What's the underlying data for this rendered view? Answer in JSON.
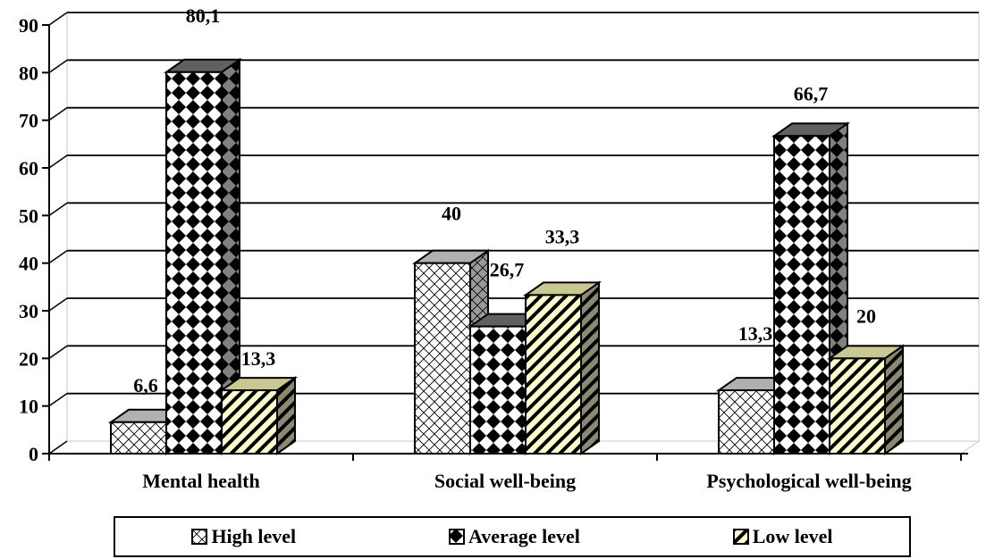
{
  "chart_data": {
    "type": "bar",
    "categories": [
      "Mental health",
      "Social well-being",
      "Psychological well-being"
    ],
    "series": [
      {
        "name": "High level",
        "values": [
          6.6,
          40,
          13.3
        ],
        "labels": [
          "6,6",
          "40",
          "13,3"
        ],
        "pattern": "crosshatch",
        "color": "#ffffff"
      },
      {
        "name": "Average level",
        "values": [
          80.1,
          26.7,
          66.7
        ],
        "labels": [
          "80,1",
          "26,7",
          "66,7"
        ],
        "pattern": "checker",
        "color": "#000000"
      },
      {
        "name": "Low level",
        "values": [
          13.3,
          33.3,
          20
        ],
        "labels": [
          "13,3",
          "33,3",
          "20"
        ],
        "pattern": "diagonal-stripes",
        "color": "#ffffcc"
      }
    ],
    "yticks": [
      0,
      10,
      20,
      30,
      40,
      50,
      60,
      70,
      80,
      90
    ],
    "ylim": [
      0,
      90
    ],
    "grid": true,
    "three_d": true,
    "legend_position": "bottom",
    "title": "",
    "xlabel": "",
    "ylabel": ""
  }
}
